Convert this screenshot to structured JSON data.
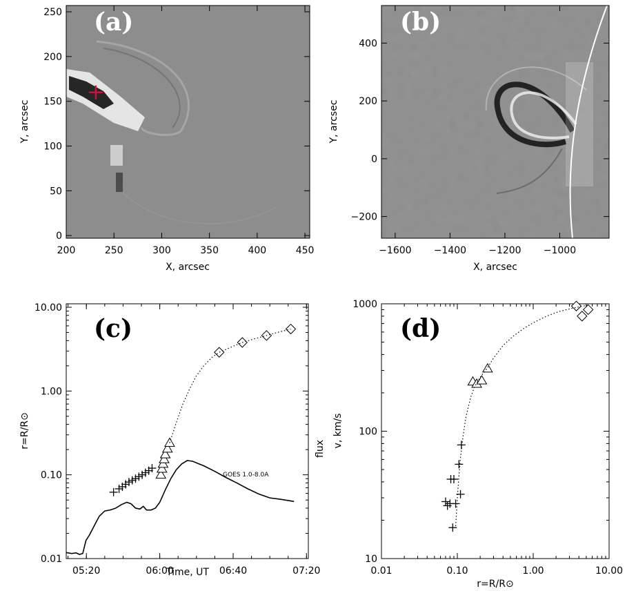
{
  "chart_data": [
    {
      "panel": "a",
      "type": "heatmap",
      "panel_label": "(a)",
      "xlabel": "X, arcsec",
      "ylabel": "Y, arcsec",
      "xlim": [
        200,
        455
      ],
      "ylim": [
        -3,
        257
      ],
      "xticks": [
        "200",
        "250",
        "300",
        "350",
        "400",
        "450"
      ],
      "yticks": [
        "0",
        "50",
        "100",
        "150",
        "200",
        "250"
      ],
      "marker": {
        "x": 231,
        "y": 160,
        "color": "#d0103a"
      }
    },
    {
      "panel": "b",
      "type": "heatmap",
      "panel_label": "(b)",
      "xlabel": "X, arcsec",
      "ylabel": "Y, arcsec",
      "xlim": [
        -1650,
        -820
      ],
      "ylim": [
        -275,
        530
      ],
      "xticks": [
        "−1600",
        "−1400",
        "−1200",
        "−1000"
      ],
      "yticks": [
        "−200",
        "0",
        "200",
        "400"
      ]
    },
    {
      "panel": "c",
      "type": "scatter",
      "panel_label": "(c)",
      "xlabel": "Time, UT",
      "ylabel": "r=R/R⊙",
      "ylabel_right": "flux",
      "xlim": [
        5.15,
        7.35
      ],
      "ylim": [
        0.01,
        11
      ],
      "y_scale": "log",
      "xticks": [
        {
          "v": 5.333,
          "label": "05:20"
        },
        {
          "v": 6.0,
          "label": "06:00"
        },
        {
          "v": 6.667,
          "label": "06:40"
        },
        {
          "v": 7.333,
          "label": "07:20"
        }
      ],
      "yticks": [
        {
          "v": 0.01,
          "label": "0.01"
        },
        {
          "v": 0.1,
          "label": "0.10"
        },
        {
          "v": 1,
          "label": "1.00"
        },
        {
          "v": 10,
          "label": "10.00"
        }
      ],
      "series": [
        {
          "marker": "plus",
          "x": [
            5.58,
            5.63,
            5.66,
            5.69,
            5.72,
            5.75,
            5.78,
            5.81,
            5.84,
            5.87,
            5.9,
            5.93
          ],
          "y": [
            0.062,
            0.068,
            0.072,
            0.077,
            0.082,
            0.086,
            0.09,
            0.095,
            0.1,
            0.106,
            0.112,
            0.12
          ]
        },
        {
          "marker": "triangle",
          "x": [
            6.01,
            6.02,
            6.03,
            6.04,
            6.05,
            6.07,
            6.09
          ],
          "y": [
            0.1,
            0.118,
            0.135,
            0.153,
            0.175,
            0.205,
            0.24
          ]
        },
        {
          "marker": "diamond",
          "x": [
            6.54,
            6.75,
            6.97,
            7.19
          ],
          "y": [
            2.9,
            3.8,
            4.6,
            5.5
          ]
        },
        {
          "line": "dotted",
          "x": [
            6.09,
            6.15,
            6.21,
            6.27,
            6.33,
            6.4,
            6.47,
            6.54,
            6.65,
            6.75,
            6.86,
            6.97,
            7.08,
            7.19
          ],
          "y": [
            0.24,
            0.42,
            0.7,
            1.05,
            1.5,
            2.0,
            2.5,
            2.9,
            3.35,
            3.8,
            4.2,
            4.6,
            5.05,
            5.5
          ]
        },
        {
          "name": "GOES 1.0-8.0A",
          "line": "solid",
          "x": [
            5.15,
            5.2,
            5.24,
            5.27,
            5.3,
            5.33,
            5.36,
            5.4,
            5.45,
            5.5,
            5.55,
            5.6,
            5.65,
            5.7,
            5.74,
            5.78,
            5.82,
            5.85,
            5.88,
            5.92,
            5.96,
            6.0,
            6.05,
            6.1,
            6.15,
            6.2,
            6.25,
            6.3,
            6.35,
            6.4,
            6.5,
            6.6,
            6.7,
            6.8,
            6.9,
            7.0,
            7.1,
            7.22
          ],
          "y": [
            0.0118,
            0.0115,
            0.0117,
            0.0112,
            0.0115,
            0.0165,
            0.019,
            0.024,
            0.032,
            0.037,
            0.038,
            0.04,
            0.044,
            0.047,
            0.045,
            0.04,
            0.039,
            0.042,
            0.038,
            0.038,
            0.04,
            0.047,
            0.066,
            0.09,
            0.115,
            0.135,
            0.148,
            0.145,
            0.136,
            0.128,
            0.11,
            0.093,
            0.08,
            0.068,
            0.059,
            0.053,
            0.051,
            0.048
          ]
        }
      ]
    },
    {
      "panel": "d",
      "type": "scatter",
      "panel_label": "(d)",
      "xlabel": "r=R/R⊙",
      "ylabel": "v, km/s",
      "xlim": [
        0.01,
        10
      ],
      "ylim": [
        10,
        1000
      ],
      "x_scale": "log",
      "y_scale": "log",
      "xticks": [
        {
          "v": 0.01,
          "label": "0.01"
        },
        {
          "v": 0.1,
          "label": "0.10"
        },
        {
          "v": 1,
          "label": "1.00"
        },
        {
          "v": 10,
          "label": "10.00"
        }
      ],
      "yticks": [
        {
          "v": 10,
          "label": "10"
        },
        {
          "v": 100,
          "label": "100"
        },
        {
          "v": 1000,
          "label": "1000"
        }
      ],
      "series": [
        {
          "marker": "plus",
          "x": [
            0.07,
            0.074,
            0.08,
            0.082,
            0.087,
            0.09,
            0.095,
            0.105,
            0.11,
            0.113
          ],
          "y": [
            28,
            26,
            27,
            42,
            17.5,
            42,
            27,
            55,
            32,
            78
          ]
        },
        {
          "marker": "triangle",
          "x": [
            0.16,
            0.18,
            0.21,
            0.25
          ],
          "y": [
            245,
            235,
            250,
            310
          ]
        },
        {
          "marker": "diamond",
          "x": [
            3.7,
            4.4,
            5.3
          ],
          "y": [
            960,
            800,
            900
          ]
        },
        {
          "line": "dotted",
          "x": [
            0.095,
            0.1,
            0.105,
            0.11,
            0.12,
            0.13,
            0.15,
            0.17,
            0.2,
            0.25,
            0.3,
            0.4,
            0.55,
            0.75,
            1.0,
            1.5,
            2.2,
            3.2,
            4.5,
            5.5
          ],
          "y": [
            18,
            30,
            45,
            62,
            95,
            130,
            185,
            225,
            265,
            315,
            375,
            470,
            560,
            640,
            710,
            800,
            870,
            920,
            960,
            980
          ]
        }
      ]
    }
  ]
}
